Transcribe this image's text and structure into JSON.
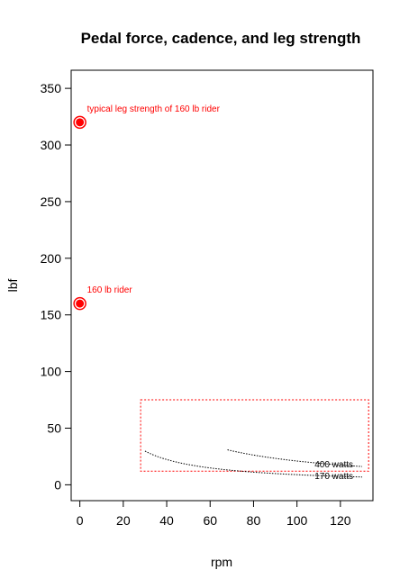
{
  "chart_data": {
    "type": "scatter",
    "title": "Pedal force, cadence, and leg strength",
    "xlabel": "rpm",
    "ylabel": "lbf",
    "xlim": [
      -4,
      135
    ],
    "ylim": [
      -14,
      366
    ],
    "x_ticks": [
      0,
      20,
      40,
      60,
      80,
      100,
      120
    ],
    "y_ticks": [
      0,
      50,
      100,
      150,
      200,
      250,
      300,
      350
    ],
    "grid": false,
    "legend": "none",
    "points": [
      {
        "x": 0,
        "y": 320,
        "label": "typical leg strength of 160 lb rider",
        "color": "#ff0000"
      },
      {
        "x": 0,
        "y": 160,
        "label": "160 lb rider",
        "color": "#ff0000"
      }
    ],
    "curves": [
      {
        "label": "400 watts",
        "watts": 400,
        "x_range": [
          68,
          130
        ],
        "style": "dotted",
        "color": "#000000"
      },
      {
        "label": "170 watts",
        "watts": 170,
        "x_range": [
          30,
          130
        ],
        "style": "dotted",
        "color": "#000000"
      }
    ],
    "region_box": {
      "x": [
        28,
        133
      ],
      "y": [
        12,
        75
      ],
      "style": "dotted",
      "color": "#ff0000"
    }
  }
}
